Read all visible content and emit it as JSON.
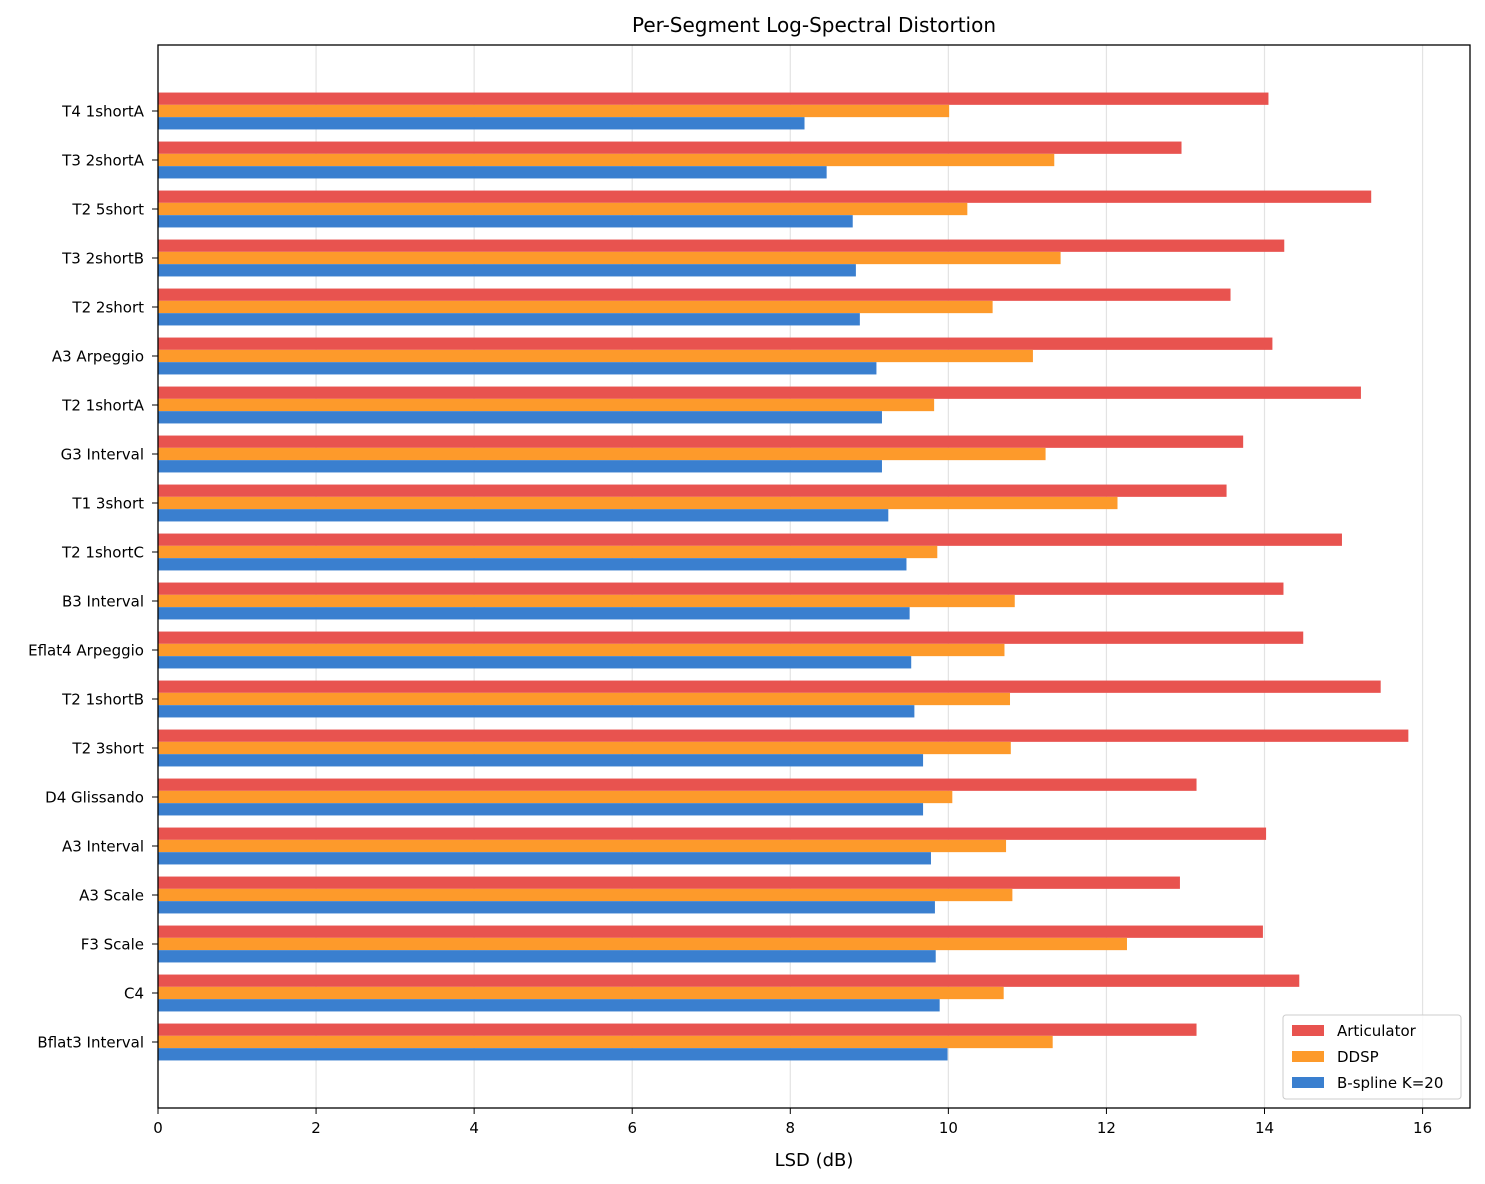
{
  "chart_data": {
    "type": "bar",
    "orientation": "horizontal",
    "title": "Per-Segment Log-Spectral Distortion",
    "xlabel": "LSD (dB)",
    "ylabel": "",
    "xlim": [
      0,
      16.6
    ],
    "xticks": [
      0,
      2,
      4,
      6,
      8,
      10,
      12,
      14,
      16
    ],
    "grid": "x",
    "legend_position": "bottom-right",
    "categories": [
      "T4 1shortA",
      "T3 2shortA",
      "T2 5short",
      "T3 2shortB",
      "T2 2short",
      "A3 Arpeggio",
      "T2 1shortA",
      "G3 Interval",
      "T1 3short",
      "T2 1shortC",
      "B3 Interval",
      "Eflat4 Arpeggio",
      "T2 1shortB",
      "T2 3short",
      "D4 Glissando",
      "A3 Interval",
      "A3 Scale",
      "F3 Scale",
      "C4 ",
      "Bflat3 Interval"
    ],
    "series": [
      {
        "name": "Articulator",
        "color": "#e8534f",
        "values": [
          14.05,
          12.95,
          15.35,
          14.25,
          13.57,
          14.1,
          15.22,
          13.73,
          13.52,
          14.98,
          14.24,
          14.49,
          15.47,
          15.82,
          13.14,
          14.02,
          12.93,
          13.98,
          14.44,
          13.14
        ]
      },
      {
        "name": "DDSP",
        "color": "#fd9a2b",
        "values": [
          10.01,
          11.34,
          10.24,
          11.42,
          10.56,
          11.07,
          9.82,
          11.23,
          12.14,
          9.86,
          10.84,
          10.71,
          10.78,
          10.79,
          10.05,
          10.73,
          10.81,
          12.26,
          10.7,
          11.32
        ]
      },
      {
        "name": "B-spline K=20",
        "color": "#3a7fcf",
        "values": [
          8.18,
          8.46,
          8.79,
          8.83,
          8.88,
          9.09,
          9.16,
          9.16,
          9.24,
          9.47,
          9.51,
          9.53,
          9.57,
          9.68,
          9.68,
          9.78,
          9.83,
          9.84,
          9.89,
          9.99
        ]
      }
    ]
  }
}
